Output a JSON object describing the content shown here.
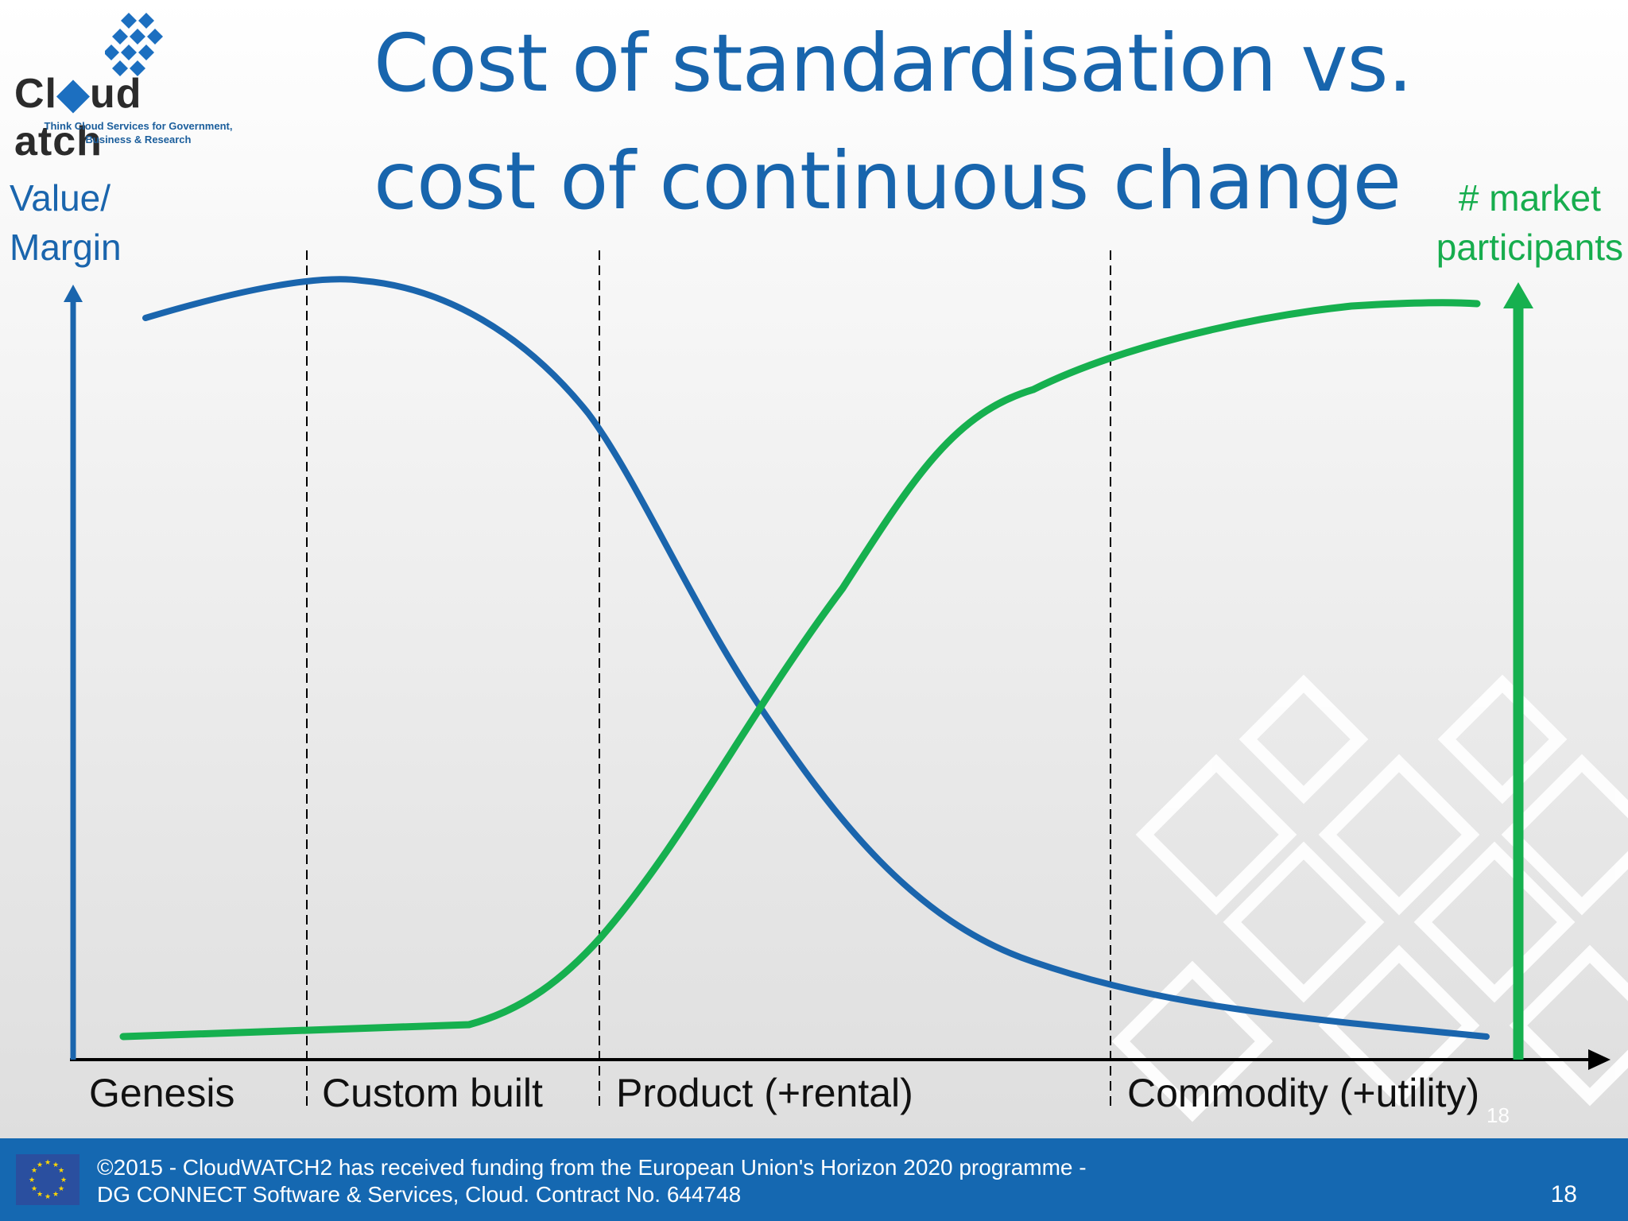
{
  "logo": {
    "word_left": "Cl",
    "word_mid": "ud",
    "word_right": "atch",
    "tagline_line1": "Think Cloud Services for Government,",
    "tagline_line2": "Business & Research"
  },
  "title": {
    "line1": "Cost of standardisation vs.",
    "line2": "cost of continuous change"
  },
  "axes": {
    "left_label_line1": "Value/",
    "left_label_line2": "Margin",
    "right_label_line1": "# market",
    "right_label_line2": "participants"
  },
  "stages": [
    {
      "label": "Genesis"
    },
    {
      "label": "Custom built"
    },
    {
      "label": "Product (+rental)"
    },
    {
      "label": "Commodity (+utility)"
    }
  ],
  "slide_number_overlay": "18",
  "footer": {
    "line1": "©2015 - CloudWATCH2 has received funding from the European Union's Horizon 2020 programme -",
    "line2": "DG CONNECT Software & Services, Cloud. Contract No. 644748",
    "page": "18"
  },
  "colors": {
    "title": "#1865ad",
    "value_curve": "#1a65ad",
    "participants_curve": "#16b04f",
    "footer_bg": "#1568b1"
  },
  "chart_data": {
    "type": "line",
    "x_stages": [
      "Genesis",
      "Custom built",
      "Product (+rental)",
      "Commodity (+utility)"
    ],
    "series": [
      {
        "name": "Value/ Margin",
        "trend": "high in Genesis, peak in Custom built, falls steeply through Product, low in Commodity"
      },
      {
        "name": "# market participants",
        "trend": "low in Genesis and Custom built, rises steeply through Product, high plateau in Commodity"
      }
    ],
    "grid": false
  }
}
